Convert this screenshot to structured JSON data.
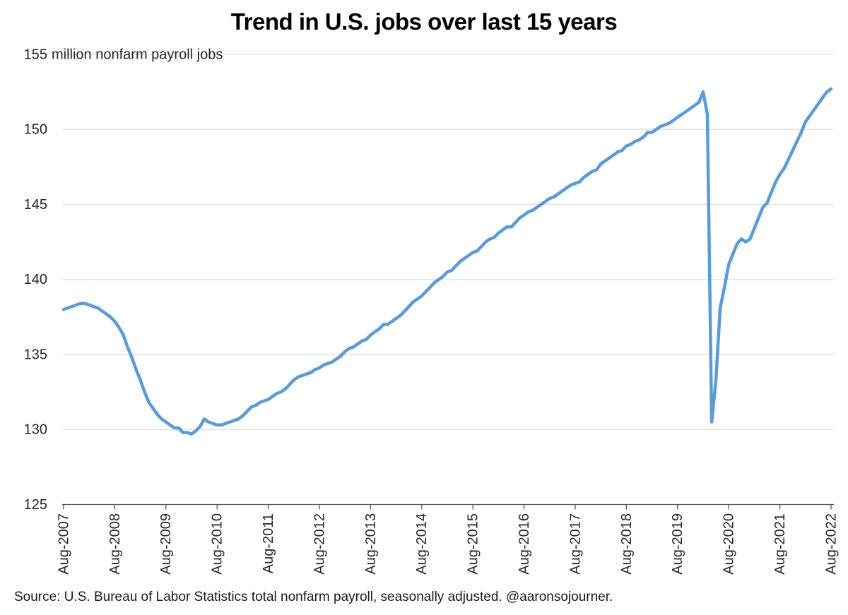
{
  "title": "Trend in U.S. jobs over last 15 years",
  "source": "Source: U.S. Bureau of Labor Statistics total nonfarm payroll, seasonally adjusted. @aaronsojourner.",
  "y_axis": {
    "annotation": "million nonfarm payroll jobs",
    "ticks": [
      "155",
      "150",
      "145",
      "140",
      "135",
      "130",
      "125"
    ]
  },
  "x_axis": {
    "ticks": [
      "Aug-2007",
      "Aug-2008",
      "Aug-2009",
      "Aug-2010",
      "Aug-2011",
      "Aug-2012",
      "Aug-2013",
      "Aug-2014",
      "Aug-2015",
      "Aug-2016",
      "Aug-2017",
      "Aug-2018",
      "Aug-2019",
      "Aug-2020",
      "Aug-2021",
      "Aug-2022"
    ]
  },
  "colors": {
    "line": "#5B9BD5",
    "gridline": "#D9E1F2",
    "axis": "#595959",
    "tick_text": "#262626",
    "title_text": "#000000"
  },
  "chart_data": {
    "type": "line",
    "title": "Trend in U.S. jobs over last 15 years",
    "ylabel": "million nonfarm payroll jobs",
    "xlabel": "",
    "ylim": [
      125,
      155
    ],
    "y_ticks": [
      125,
      130,
      135,
      140,
      145,
      150,
      155
    ],
    "grid": "horizontal",
    "legend_position": "none",
    "series": [
      {
        "name": "Total nonfarm payroll jobs (millions)",
        "frequency": "monthly",
        "start": "Aug-2007",
        "end": "Aug-2022",
        "values": [
          138.0,
          138.1,
          138.2,
          138.3,
          138.4,
          138.4,
          138.3,
          138.2,
          138.1,
          137.9,
          137.7,
          137.5,
          137.2,
          136.8,
          136.3,
          135.5,
          134.8,
          134.0,
          133.3,
          132.5,
          131.8,
          131.4,
          131.0,
          130.7,
          130.5,
          130.3,
          130.1,
          130.1,
          129.8,
          129.8,
          129.7,
          129.9,
          130.2,
          130.7,
          130.5,
          130.4,
          130.3,
          130.3,
          130.4,
          130.5,
          130.6,
          130.7,
          130.9,
          131.2,
          131.5,
          131.6,
          131.8,
          131.9,
          132.0,
          132.2,
          132.4,
          132.5,
          132.7,
          133.0,
          133.3,
          133.5,
          133.6,
          133.7,
          133.8,
          134.0,
          134.1,
          134.3,
          134.4,
          134.5,
          134.7,
          134.9,
          135.2,
          135.4,
          135.5,
          135.7,
          135.9,
          136.0,
          136.3,
          136.5,
          136.7,
          137.0,
          137.0,
          137.2,
          137.4,
          137.6,
          137.9,
          138.2,
          138.5,
          138.7,
          138.9,
          139.2,
          139.5,
          139.8,
          140.0,
          140.2,
          140.5,
          140.6,
          140.9,
          141.2,
          141.4,
          141.6,
          141.8,
          141.9,
          142.2,
          142.5,
          142.7,
          142.8,
          143.1,
          143.3,
          143.5,
          143.5,
          143.8,
          144.1,
          144.3,
          144.5,
          144.6,
          144.8,
          145.0,
          145.2,
          145.4,
          145.5,
          145.7,
          145.9,
          146.1,
          146.3,
          146.4,
          146.5,
          146.8,
          147.0,
          147.2,
          147.3,
          147.7,
          147.9,
          148.1,
          148.3,
          148.5,
          148.6,
          148.9,
          149.0,
          149.2,
          149.3,
          149.5,
          149.8,
          149.8,
          150.0,
          150.2,
          150.3,
          150.4,
          150.6,
          150.8,
          151.0,
          151.2,
          151.4,
          151.6,
          151.8,
          152.5,
          151.0,
          130.5,
          133.3,
          138.1,
          139.5,
          141.0,
          141.7,
          142.4,
          142.7,
          142.5,
          142.7,
          143.4,
          144.1,
          144.8,
          145.1,
          145.8,
          146.5,
          147.0,
          147.4,
          148.0,
          148.6,
          149.2,
          149.8,
          150.5,
          150.9,
          151.3,
          151.7,
          152.1,
          152.5,
          152.7
        ]
      }
    ]
  }
}
